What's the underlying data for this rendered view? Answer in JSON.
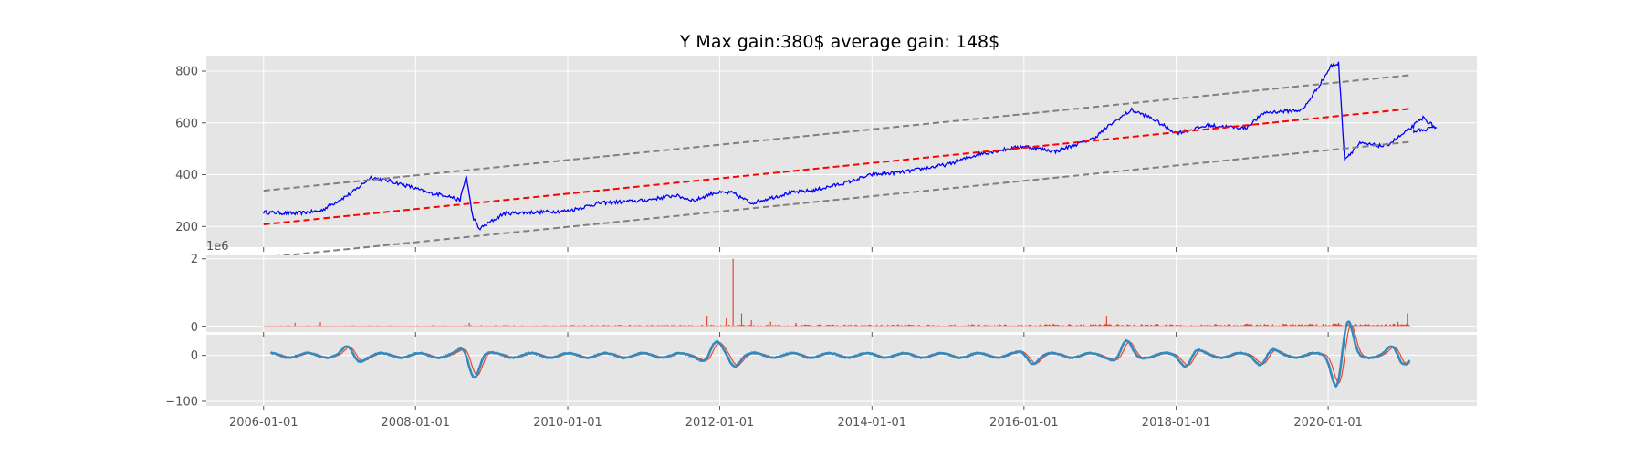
{
  "chart_data": [
    {
      "panel": "price",
      "type": "line",
      "title": "Y Max gain:380$  average gain: 148$",
      "x_range": [
        "2005-04-01",
        "2021-12-15"
      ],
      "ylim": [
        120,
        860
      ],
      "y_ticks": [
        200,
        400,
        600,
        800
      ],
      "x_ticks": [
        "2006-01-01",
        "2008-01-01",
        "2010-01-01",
        "2012-01-01",
        "2014-01-01",
        "2016-01-01",
        "2018-01-01",
        "2020-01-01"
      ],
      "grid": true,
      "series": [
        {
          "role": "price",
          "color": "#0000ff",
          "style": "solid",
          "x": [
            "2006-01-01",
            "2006-06-01",
            "2006-10-01",
            "2007-03-01",
            "2007-06-01",
            "2007-09-01",
            "2007-12-01",
            "2008-03-01",
            "2008-06-01",
            "2008-08-01",
            "2008-09-01",
            "2008-10-01",
            "2008-11-01",
            "2009-03-01",
            "2009-08-01",
            "2010-01-01",
            "2010-06-01",
            "2011-01-01",
            "2011-06-01",
            "2011-09-01",
            "2011-12-01",
            "2012-03-01",
            "2012-06-01",
            "2012-12-01",
            "2013-04-01",
            "2013-09-01",
            "2014-01-01",
            "2014-06-01",
            "2015-01-01",
            "2015-06-01",
            "2016-01-01",
            "2016-06-01",
            "2016-12-01",
            "2017-03-01",
            "2017-06-01",
            "2017-09-01",
            "2018-01-01",
            "2018-06-01",
            "2018-12-01",
            "2019-03-01",
            "2019-06-01",
            "2019-09-01",
            "2019-12-01",
            "2020-01-15",
            "2020-02-20",
            "2020-03-20",
            "2020-06-01",
            "2020-10-01",
            "2021-01-01",
            "2021-04-01",
            "2021-06-01",
            "2021-02-15",
            "2021-02-15"
          ],
          "y": [
            255,
            250,
            260,
            330,
            390,
            375,
            355,
            330,
            320,
            300,
            395,
            240,
            190,
            250,
            255,
            260,
            290,
            300,
            320,
            300,
            330,
            330,
            290,
            330,
            340,
            370,
            400,
            410,
            440,
            480,
            510,
            490,
            540,
            600,
            650,
            620,
            560,
            590,
            580,
            640,
            645,
            650,
            760,
            820,
            830,
            460,
            520,
            510,
            560,
            620,
            580,
            570,
            570
          ]
        },
        {
          "role": "trend",
          "color": "#ff0000",
          "style": "dashed",
          "x": [
            "2006-01-01",
            "2021-01-31"
          ],
          "y": [
            208,
            655
          ]
        },
        {
          "role": "upper-band",
          "color": "#808080",
          "style": "dashed",
          "x": [
            "2006-01-01",
            "2021-01-31"
          ],
          "y": [
            338,
            785
          ]
        },
        {
          "role": "lower-band",
          "color": "#808080",
          "style": "dashed",
          "x": [
            "2006-01-01",
            "2021-01-31"
          ],
          "y": [
            80,
            527
          ]
        }
      ]
    },
    {
      "panel": "volume",
      "type": "bar",
      "ylim": [
        -0.15,
        2.1
      ],
      "y_ticks": [
        0,
        2
      ],
      "offset_label": "1e6",
      "color": "#e24a33",
      "grid": true,
      "spikes": [
        {
          "x": "2006-06-01",
          "y": 0.12
        },
        {
          "x": "2006-10-01",
          "y": 0.14
        },
        {
          "x": "2008-09-15",
          "y": 0.12
        },
        {
          "x": "2011-11-01",
          "y": 0.3
        },
        {
          "x": "2012-02-01",
          "y": 0.25
        },
        {
          "x": "2012-03-05",
          "y": 2.0
        },
        {
          "x": "2012-04-15",
          "y": 0.4
        },
        {
          "x": "2012-06-01",
          "y": 0.2
        },
        {
          "x": "2012-09-01",
          "y": 0.15
        },
        {
          "x": "2013-01-01",
          "y": 0.12
        },
        {
          "x": "2017-02-01",
          "y": 0.3
        },
        {
          "x": "2020-02-20",
          "y": 0.12
        },
        {
          "x": "2020-12-01",
          "y": 0.15
        },
        {
          "x": "2021-01-15",
          "y": 0.4
        }
      ]
    },
    {
      "panel": "oscillator",
      "type": "line",
      "ylim": [
        -110,
        45
      ],
      "y_ticks": [
        0,
        -100
      ],
      "grid": true,
      "series": [
        {
          "role": "signal",
          "color": "#e24a33"
        },
        {
          "role": "oscillator",
          "color": "#348abd"
        }
      ],
      "events": [
        {
          "x": "2007-03-01",
          "amp": 20
        },
        {
          "x": "2008-10-01",
          "amp": 45
        },
        {
          "x": "2011-12-01",
          "amp": 25
        },
        {
          "x": "2012-03-01",
          "amp": 20
        },
        {
          "x": "2016-02-01",
          "amp": 15
        },
        {
          "x": "2017-05-01",
          "amp": 28
        },
        {
          "x": "2018-03-01",
          "amp": 22
        },
        {
          "x": "2019-03-01",
          "amp": 20
        },
        {
          "x": "2020-03-10",
          "amp": 105
        },
        {
          "x": "2020-12-01",
          "amp": 25
        }
      ]
    }
  ]
}
